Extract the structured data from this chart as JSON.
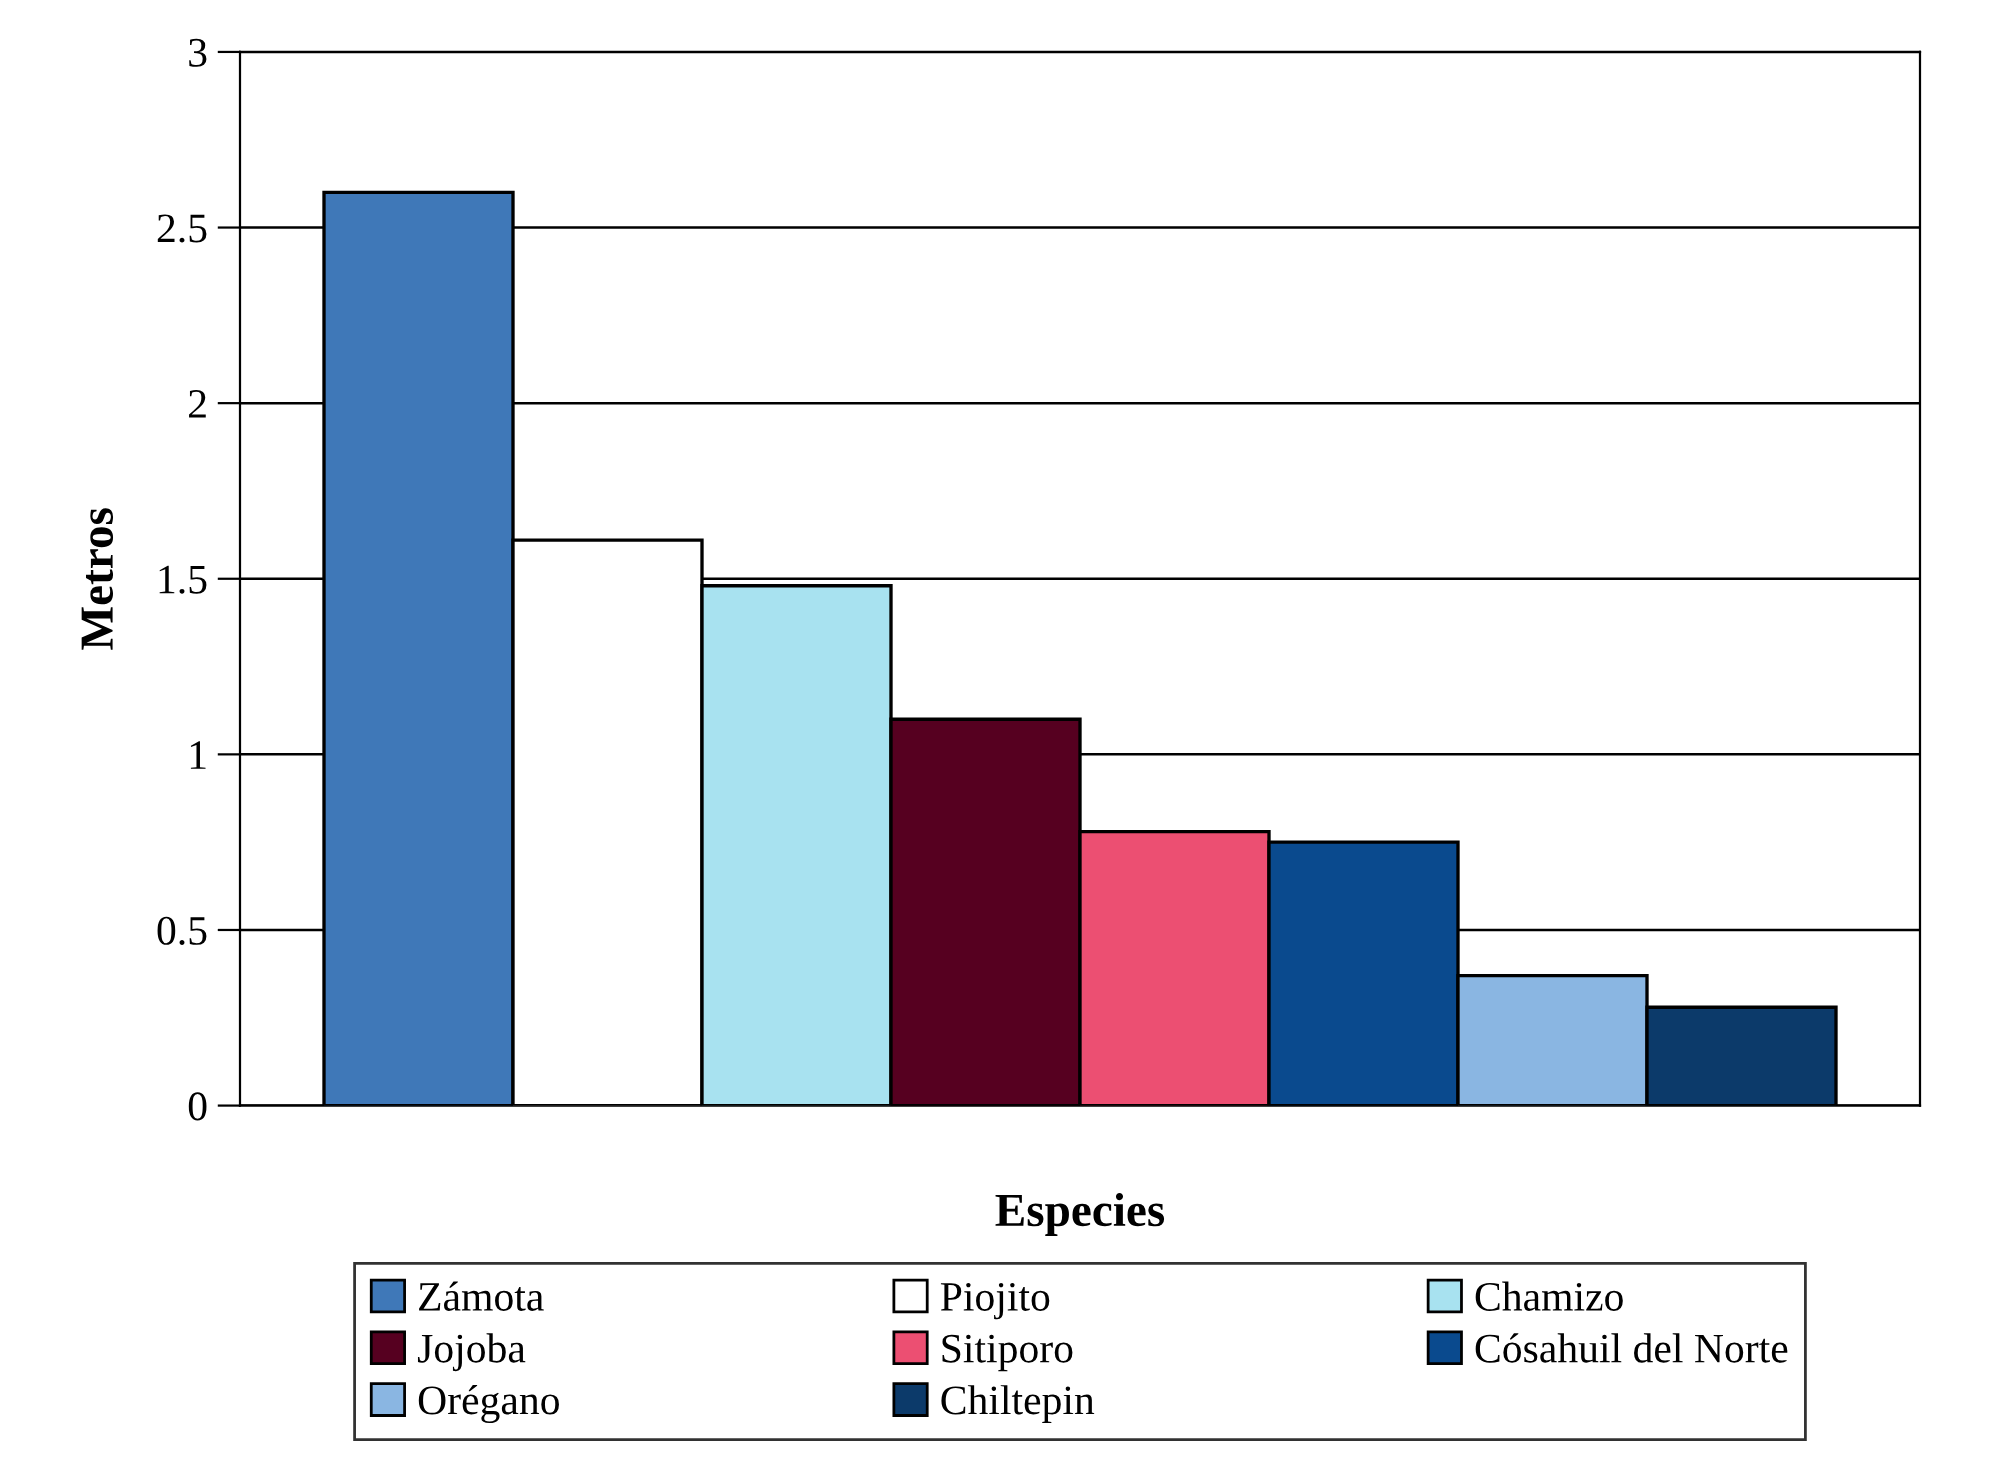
{
  "chart_data": {
    "type": "bar",
    "xlabel": "Especies",
    "ylabel": "Metros",
    "categories": [
      null
    ],
    "series": [
      {
        "name": "Zámota",
        "color": "#3f78b8",
        "values": [
          2.6
        ]
      },
      {
        "name": "Piojito",
        "color": "#ffffff",
        "values": [
          1.61
        ]
      },
      {
        "name": "Chamizo",
        "color": "#a8e2f0",
        "values": [
          1.48
        ]
      },
      {
        "name": "Jojoba",
        "color": "#560020",
        "values": [
          1.1
        ]
      },
      {
        "name": "Sitiporo",
        "color": "#ec4f72",
        "values": [
          0.78
        ]
      },
      {
        "name": "Cósahuil del Norte",
        "color": "#0a4a8e",
        "values": [
          0.75
        ]
      },
      {
        "name": "Orégano",
        "color": "#8ab6e2",
        "values": [
          0.37
        ]
      },
      {
        "name": "Chiltepin",
        "color": "#0c3a6a",
        "values": [
          0.28
        ]
      }
    ],
    "ylim": [
      0,
      3
    ],
    "yticks": [
      0,
      0.5,
      1,
      1.5,
      2,
      2.5,
      3
    ],
    "grid": "y",
    "legend": "bottom"
  }
}
